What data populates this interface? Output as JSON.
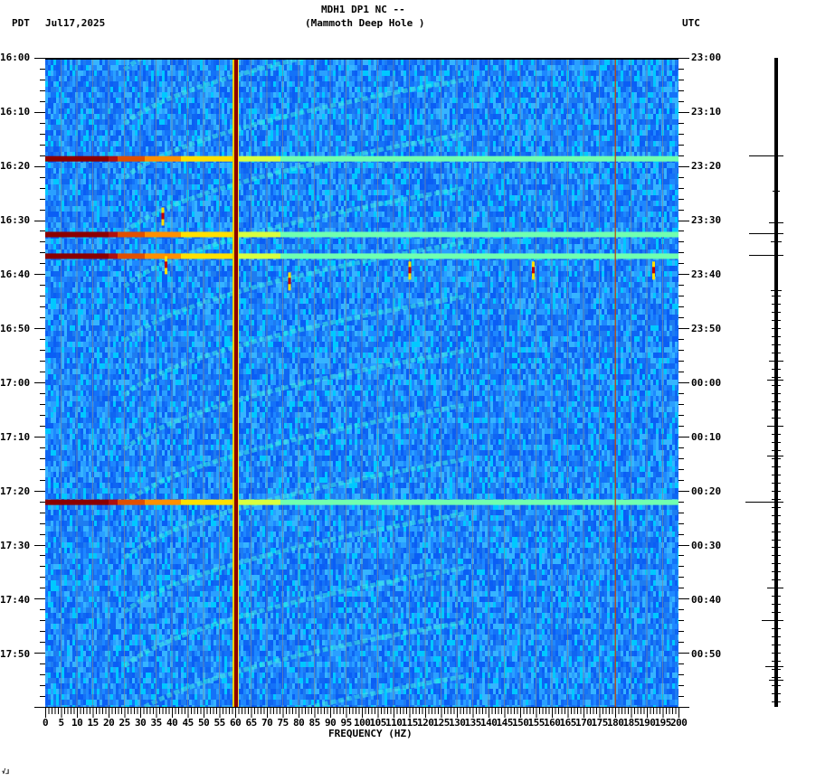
{
  "header": {
    "station": "MDH1 DP1 NC --",
    "location": "(Mammoth Deep Hole )",
    "left_tz": "PDT",
    "date": "Jul17,2025",
    "right_tz": "UTC"
  },
  "footer": {
    "xlabel": "FREQUENCY (HZ)",
    "corner_mark": "√⅃"
  },
  "chart_data": {
    "type": "heatmap",
    "title": "MDH1 DP1 NC -- (Mammoth Deep Hole ) spectrogram",
    "xlabel": "FREQUENCY (HZ)",
    "ylabel_left": "PDT",
    "ylabel_right": "UTC",
    "xlim": [
      0,
      200
    ],
    "x_ticks": [
      0,
      5,
      10,
      15,
      20,
      25,
      30,
      35,
      40,
      45,
      50,
      55,
      60,
      65,
      70,
      75,
      80,
      85,
      90,
      95,
      100,
      105,
      110,
      115,
      120,
      125,
      130,
      135,
      140,
      145,
      150,
      155,
      160,
      165,
      170,
      175,
      180,
      185,
      190,
      195,
      200
    ],
    "y_ticks_left": [
      "16:00",
      "16:10",
      "16:20",
      "16:30",
      "16:40",
      "16:50",
      "17:00",
      "17:10",
      "17:20",
      "17:30",
      "17:40",
      "17:50"
    ],
    "y_ticks_right": [
      "23:00",
      "23:10",
      "23:20",
      "23:30",
      "23:40",
      "23:50",
      "00:00",
      "00:10",
      "00:20",
      "00:30",
      "00:40",
      "00:50"
    ],
    "time_span_minutes": 120,
    "colormap": [
      "#00007f",
      "#0050ff",
      "#1e90ff",
      "#00e5ff",
      "#7fff7f",
      "#ffff00",
      "#ff7f00",
      "#ff0000",
      "#7f0000"
    ],
    "persistent_lines_hz": [
      {
        "freq": 60,
        "color": "#8b0000",
        "note": "60 Hz power line"
      },
      {
        "freq": 180,
        "color": "#c04000",
        "note": "faint harmonic"
      }
    ],
    "broadband_events": [
      {
        "time_pdt": "16:18",
        "intensity": "high",
        "low_freq_saturation_hz": [
          0,
          20
        ]
      },
      {
        "time_pdt": "16:32",
        "intensity": "high",
        "low_freq_saturation_hz": [
          0,
          22
        ]
      },
      {
        "time_pdt": "16:36",
        "intensity": "high",
        "low_freq_saturation_hz": [
          0,
          22
        ]
      },
      {
        "time_pdt": "17:22",
        "intensity": "high",
        "low_freq_saturation_hz": [
          0,
          20
        ]
      }
    ],
    "transient_spots": [
      {
        "freq": 37,
        "time_pdt": "16:29"
      },
      {
        "freq": 38,
        "time_pdt": "16:38"
      },
      {
        "freq": 77,
        "time_pdt": "16:41"
      },
      {
        "freq": 115,
        "time_pdt": "16:39"
      },
      {
        "freq": 154,
        "time_pdt": "16:39"
      },
      {
        "freq": 192,
        "time_pdt": "16:39"
      }
    ],
    "features": "Repeating curved (arc) tonal patterns sweeping from ~25 Hz to ~130 Hz across the full 2-hour window",
    "grid": true
  },
  "trace_events": [
    {
      "time_min": 18,
      "width": 30
    },
    {
      "time_min": 24.5,
      "width": 4
    },
    {
      "time_min": 30.5,
      "width": 8
    },
    {
      "time_min": 32.5,
      "width": 30
    },
    {
      "time_min": 34,
      "width": 6
    },
    {
      "time_min": 36.5,
      "width": 30
    },
    {
      "time_min": 43,
      "width": 6
    },
    {
      "time_min": 56,
      "width": 8
    },
    {
      "time_min": 59.5,
      "width": 10
    },
    {
      "time_min": 68,
      "width": 10
    },
    {
      "time_min": 73.5,
      "width": 10
    },
    {
      "time_min": 82,
      "width": 34
    },
    {
      "time_min": 98,
      "width": 10
    },
    {
      "time_min": 104,
      "width": 16
    },
    {
      "time_min": 112.5,
      "width": 12
    },
    {
      "time_min": 115,
      "width": 8
    }
  ]
}
